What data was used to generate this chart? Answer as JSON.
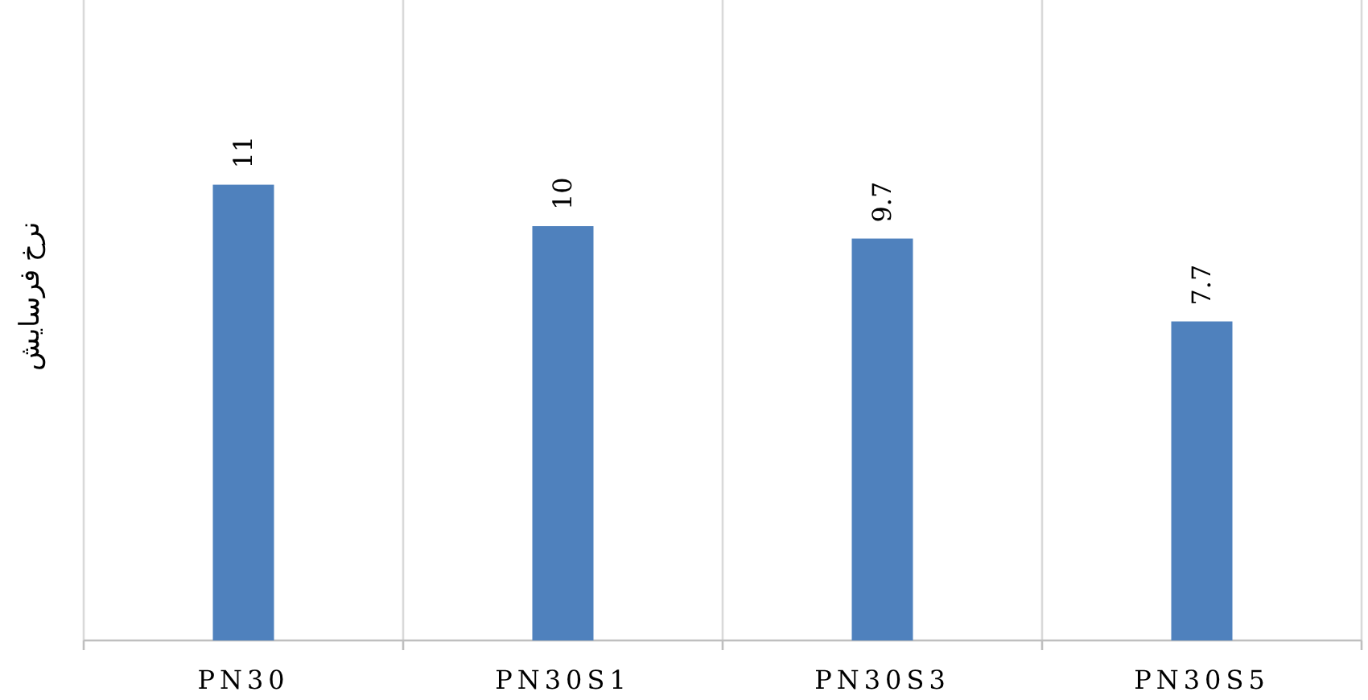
{
  "chart_data": {
    "type": "bar",
    "ylabel": "نرخ فرسایش",
    "categories": [
      "PN30",
      "PN30S1",
      "PN30S3",
      "PN30S5"
    ],
    "values": [
      11,
      10,
      9.7,
      7.7
    ],
    "color": "#4f81bd",
    "data_labels": true,
    "grid": "x"
  }
}
